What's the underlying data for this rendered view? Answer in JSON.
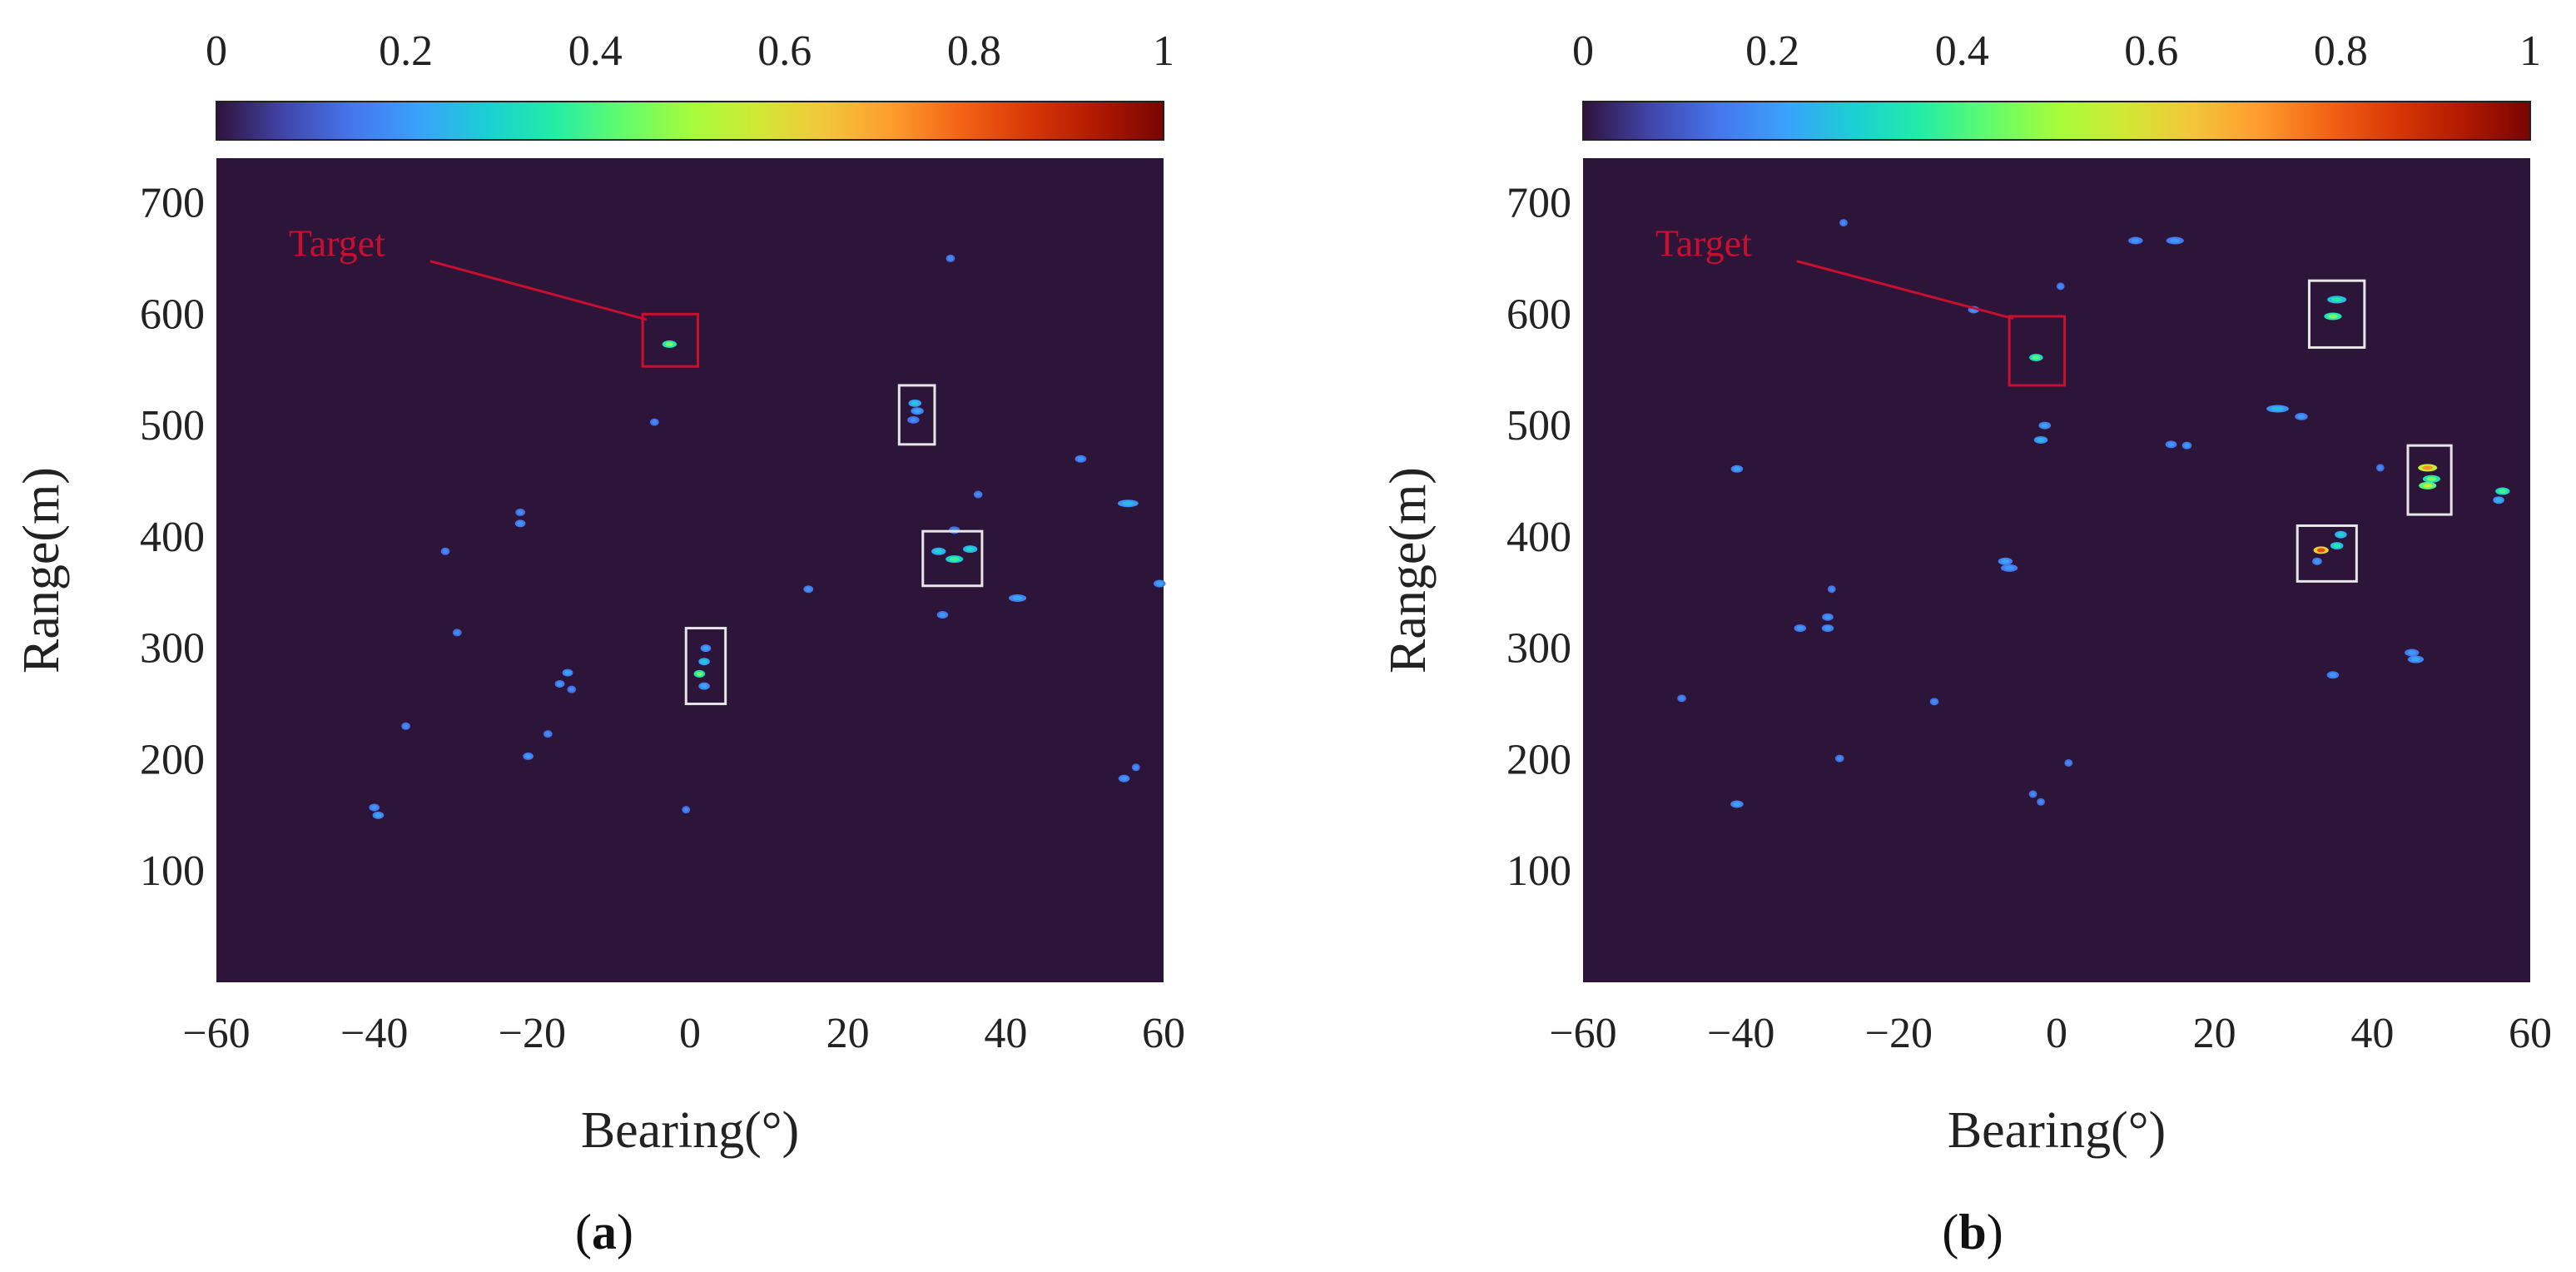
{
  "colors": {
    "background_value0": "#2d1439",
    "target_box": "#c8102e",
    "candidate_box": "#e6e6e6",
    "colormap": [
      "#30123b",
      "#4145ab",
      "#4675ed",
      "#39a2fc",
      "#1bcfd4",
      "#24eca6",
      "#61fc6c",
      "#a4fc3b",
      "#d1e834",
      "#f3c63a",
      "#fe9b2d",
      "#f36315",
      "#d93806",
      "#b11901",
      "#7a0402"
    ]
  },
  "chart_data": [
    {
      "type": "heatmap",
      "panel": "a",
      "caption": {
        "open": "(",
        "letter": "a",
        "close": ")"
      },
      "xlabel": "Bearing(°)",
      "ylabel": "Range(m)",
      "xlim": [
        -60,
        60
      ],
      "ylim": [
        0,
        740
      ],
      "xticks": [
        -60,
        -40,
        -20,
        0,
        20,
        40,
        60
      ],
      "xtick_labels": [
        "−60",
        "−40",
        "−20",
        "0",
        "20",
        "40",
        "60"
      ],
      "yticks": [
        100,
        200,
        300,
        400,
        500,
        600,
        700
      ],
      "ytick_labels": [
        "100",
        "200",
        "300",
        "400",
        "500",
        "600",
        "700"
      ],
      "colorbar": {
        "range": [
          0,
          1
        ],
        "ticks": [
          0,
          0.2,
          0.4,
          0.6,
          0.8,
          1
        ],
        "tick_labels": [
          "0",
          "0.2",
          "0.4",
          "0.6",
          "0.8",
          "1"
        ]
      },
      "annotation": {
        "text": "Target",
        "text_at": [
          -50,
          652
        ],
        "line_to": [
          -5.5,
          595
        ]
      },
      "target_box": {
        "xmin": -6,
        "xmax": 1,
        "ymin": 553,
        "ymax": 600
      },
      "candidate_boxes": [
        {
          "xmin": 26.5,
          "xmax": 31,
          "ymin": 483,
          "ymax": 536
        },
        {
          "xmin": 29.5,
          "xmax": 37,
          "ymin": 356,
          "ymax": 405
        },
        {
          "xmin": -0.5,
          "xmax": 4.5,
          "ymin": 250,
          "ymax": 318
        }
      ],
      "blobs": [
        {
          "x": -2.6,
          "y": 573,
          "value": 0.45,
          "w": 1.2
        },
        {
          "x": 28.5,
          "y": 520,
          "value": 0.28,
          "w": 1.0
        },
        {
          "x": 28.8,
          "y": 513,
          "value": 0.22,
          "w": 1.0
        },
        {
          "x": 28.3,
          "y": 505,
          "value": 0.18,
          "w": 0.9
        },
        {
          "x": 31.5,
          "y": 387,
          "value": 0.3,
          "w": 1.2
        },
        {
          "x": 33.5,
          "y": 380,
          "value": 0.38,
          "w": 1.6
        },
        {
          "x": 35.5,
          "y": 389,
          "value": 0.32,
          "w": 1.2
        },
        {
          "x": 33.5,
          "y": 406,
          "value": 0.18,
          "w": 0.8
        },
        {
          "x": 2.0,
          "y": 300,
          "value": 0.22,
          "w": 0.7
        },
        {
          "x": 1.8,
          "y": 288,
          "value": 0.28,
          "w": 0.8
        },
        {
          "x": 1.2,
          "y": 277,
          "value": 0.45,
          "w": 0.8
        },
        {
          "x": 1.8,
          "y": 266,
          "value": 0.22,
          "w": 0.8
        },
        {
          "x": 33.0,
          "y": 650,
          "value": 0.18,
          "w": 0.5
        },
        {
          "x": -4.5,
          "y": 503,
          "value": 0.18,
          "w": 0.5
        },
        {
          "x": 49.5,
          "y": 470,
          "value": 0.2,
          "w": 0.8
        },
        {
          "x": 55.5,
          "y": 430,
          "value": 0.25,
          "w": 2.0
        },
        {
          "x": 36.5,
          "y": 438,
          "value": 0.18,
          "w": 0.5
        },
        {
          "x": -21.5,
          "y": 422,
          "value": 0.18,
          "w": 0.6
        },
        {
          "x": -21.5,
          "y": 412,
          "value": 0.2,
          "w": 0.7
        },
        {
          "x": -31.0,
          "y": 387,
          "value": 0.18,
          "w": 0.5
        },
        {
          "x": 15.0,
          "y": 353,
          "value": 0.2,
          "w": 0.6
        },
        {
          "x": 41.5,
          "y": 345,
          "value": 0.22,
          "w": 1.6
        },
        {
          "x": 59.5,
          "y": 358,
          "value": 0.22,
          "w": 0.9
        },
        {
          "x": 32.0,
          "y": 330,
          "value": 0.2,
          "w": 0.8
        },
        {
          "x": -29.5,
          "y": 314,
          "value": 0.18,
          "w": 0.5
        },
        {
          "x": -15.5,
          "y": 278,
          "value": 0.22,
          "w": 0.7
        },
        {
          "x": -16.5,
          "y": 268,
          "value": 0.2,
          "w": 0.6
        },
        {
          "x": -15.0,
          "y": 263,
          "value": 0.18,
          "w": 0.5
        },
        {
          "x": -36.0,
          "y": 230,
          "value": 0.18,
          "w": 0.5
        },
        {
          "x": -18.0,
          "y": 223,
          "value": 0.18,
          "w": 0.5
        },
        {
          "x": -20.5,
          "y": 203,
          "value": 0.2,
          "w": 0.7
        },
        {
          "x": 56.5,
          "y": 193,
          "value": 0.18,
          "w": 0.4
        },
        {
          "x": 55.0,
          "y": 183,
          "value": 0.2,
          "w": 0.8
        },
        {
          "x": -40.0,
          "y": 157,
          "value": 0.2,
          "w": 0.7
        },
        {
          "x": -39.5,
          "y": 150,
          "value": 0.22,
          "w": 0.8
        },
        {
          "x": -0.5,
          "y": 155,
          "value": 0.18,
          "w": 0.4
        }
      ]
    },
    {
      "type": "heatmap",
      "panel": "b",
      "caption": {
        "open": "(",
        "letter": "b",
        "close": ")"
      },
      "xlabel": "Bearing(°)",
      "ylabel": "Range(m)",
      "xlim": [
        -60,
        60
      ],
      "ylim": [
        0,
        740
      ],
      "xticks": [
        -60,
        -40,
        -20,
        0,
        20,
        40,
        60
      ],
      "xtick_labels": [
        "−60",
        "−40",
        "−20",
        "0",
        "20",
        "40",
        "60"
      ],
      "yticks": [
        100,
        200,
        300,
        400,
        500,
        600,
        700
      ],
      "ytick_labels": [
        "100",
        "200",
        "300",
        "400",
        "500",
        "600",
        "700"
      ],
      "colorbar": {
        "range": [
          0,
          1
        ],
        "ticks": [
          0,
          0.2,
          0.4,
          0.6,
          0.8,
          1
        ],
        "tick_labels": [
          "0",
          "0.2",
          "0.4",
          "0.6",
          "0.8",
          "1"
        ]
      },
      "annotation": {
        "text": "Target",
        "text_at": [
          -50,
          652
        ],
        "line_to": [
          -5.5,
          596
        ]
      },
      "target_box": {
        "xmin": -6,
        "xmax": 1,
        "ymin": 536,
        "ymax": 598
      },
      "candidate_boxes": [
        {
          "xmin": 32,
          "xmax": 39,
          "ymin": 570,
          "ymax": 630
        },
        {
          "xmin": 44.5,
          "xmax": 50,
          "ymin": 420,
          "ymax": 482
        },
        {
          "xmin": 30.5,
          "xmax": 38,
          "ymin": 360,
          "ymax": 410
        }
      ],
      "blobs": [
        {
          "x": -2.6,
          "y": 561,
          "value": 0.42,
          "w": 1.1
        },
        {
          "x": 35.5,
          "y": 613,
          "value": 0.35,
          "w": 1.8
        },
        {
          "x": 35.0,
          "y": 598,
          "value": 0.45,
          "w": 1.6
        },
        {
          "x": 47.0,
          "y": 462,
          "value": 0.72,
          "w": 1.8
        },
        {
          "x": 47.5,
          "y": 452,
          "value": 0.45,
          "w": 1.6
        },
        {
          "x": 47.0,
          "y": 446,
          "value": 0.55,
          "w": 1.6
        },
        {
          "x": 33.5,
          "y": 388,
          "value": 0.82,
          "w": 1.3
        },
        {
          "x": 35.5,
          "y": 392,
          "value": 0.35,
          "w": 1.0
        },
        {
          "x": 36.0,
          "y": 402,
          "value": 0.3,
          "w": 0.9
        },
        {
          "x": 33.0,
          "y": 378,
          "value": 0.2,
          "w": 0.6
        },
        {
          "x": 56.5,
          "y": 441,
          "value": 0.4,
          "w": 1.2
        },
        {
          "x": 56.0,
          "y": 433,
          "value": 0.25,
          "w": 0.8
        },
        {
          "x": -27.0,
          "y": 682,
          "value": 0.18,
          "w": 0.4
        },
        {
          "x": 10.0,
          "y": 666,
          "value": 0.2,
          "w": 1.2
        },
        {
          "x": 15.0,
          "y": 666,
          "value": 0.2,
          "w": 1.6
        },
        {
          "x": 0.5,
          "y": 625,
          "value": 0.18,
          "w": 0.4
        },
        {
          "x": -10.5,
          "y": 604,
          "value": 0.2,
          "w": 0.8
        },
        {
          "x": 28.0,
          "y": 515,
          "value": 0.25,
          "w": 2.2
        },
        {
          "x": 31.0,
          "y": 508,
          "value": 0.2,
          "w": 1.0
        },
        {
          "x": -1.5,
          "y": 500,
          "value": 0.22,
          "w": 0.9
        },
        {
          "x": -2.0,
          "y": 487,
          "value": 0.25,
          "w": 1.1
        },
        {
          "x": 14.5,
          "y": 483,
          "value": 0.2,
          "w": 0.8
        },
        {
          "x": 16.5,
          "y": 482,
          "value": 0.2,
          "w": 0.6
        },
        {
          "x": 41.0,
          "y": 462,
          "value": 0.18,
          "w": 0.4
        },
        {
          "x": -40.5,
          "y": 461,
          "value": 0.22,
          "w": 0.9
        },
        {
          "x": -6.5,
          "y": 378,
          "value": 0.22,
          "w": 1.2
        },
        {
          "x": -6.0,
          "y": 372,
          "value": 0.2,
          "w": 1.5
        },
        {
          "x": -28.5,
          "y": 353,
          "value": 0.18,
          "w": 0.4
        },
        {
          "x": -29.0,
          "y": 328,
          "value": 0.2,
          "w": 0.8
        },
        {
          "x": -32.5,
          "y": 318,
          "value": 0.2,
          "w": 0.9
        },
        {
          "x": -29.0,
          "y": 318,
          "value": 0.2,
          "w": 0.9
        },
        {
          "x": 45.0,
          "y": 296,
          "value": 0.2,
          "w": 1.2
        },
        {
          "x": 45.5,
          "y": 290,
          "value": 0.22,
          "w": 1.4
        },
        {
          "x": 35.0,
          "y": 276,
          "value": 0.2,
          "w": 0.9
        },
        {
          "x": -47.5,
          "y": 255,
          "value": 0.18,
          "w": 0.5
        },
        {
          "x": -15.5,
          "y": 252,
          "value": 0.18,
          "w": 0.5
        },
        {
          "x": -27.5,
          "y": 201,
          "value": 0.18,
          "w": 0.5
        },
        {
          "x": 1.5,
          "y": 197,
          "value": 0.18,
          "w": 0.4
        },
        {
          "x": -3.0,
          "y": 169,
          "value": 0.18,
          "w": 0.4
        },
        {
          "x": -2.0,
          "y": 162,
          "value": 0.18,
          "w": 0.4
        },
        {
          "x": -40.5,
          "y": 160,
          "value": 0.22,
          "w": 1.0
        }
      ]
    }
  ]
}
